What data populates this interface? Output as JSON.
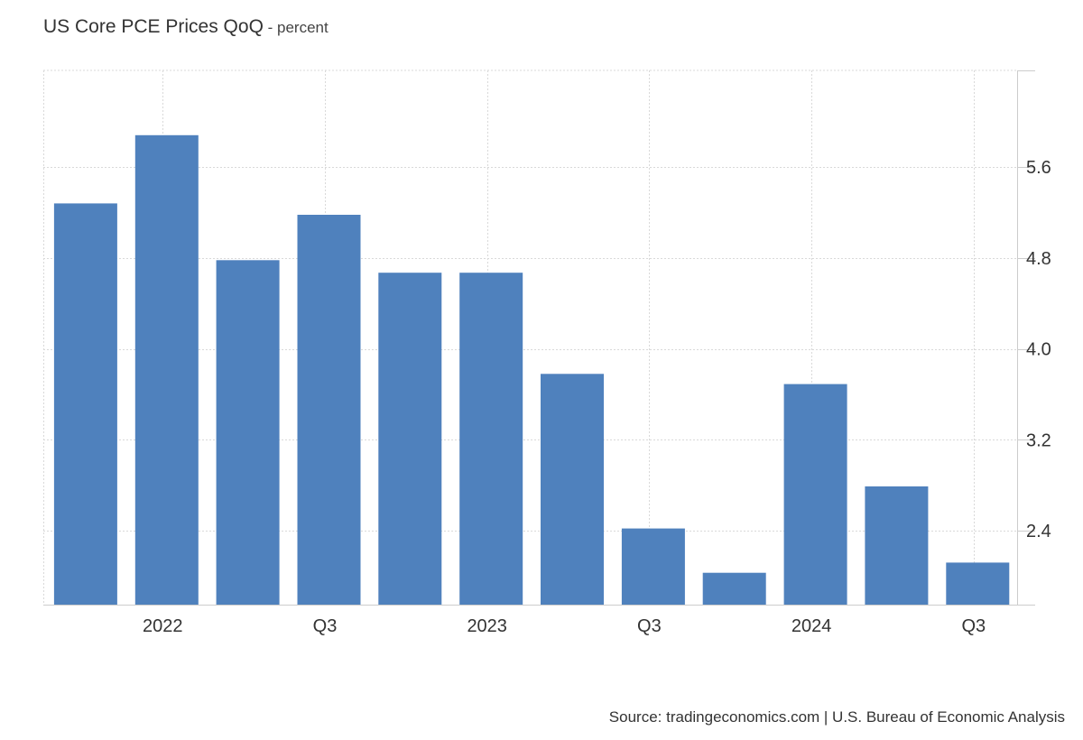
{
  "title": {
    "main": "US Core PCE Prices QoQ",
    "separator": " - ",
    "unit": "percent"
  },
  "source": "Source: tradingeconomics.com | U.S. Bureau of Economic Analysis",
  "colors": {
    "bar": "#4f81bd",
    "grid": "#d9d9d9",
    "axis": "#cccccc",
    "text": "#333333"
  },
  "chart_data": {
    "type": "bar",
    "series": [
      {
        "values": [
          5.28,
          5.88,
          4.78,
          5.18,
          4.67,
          4.67,
          3.78,
          2.42,
          2.03,
          3.69,
          2.79,
          2.12
        ]
      }
    ],
    "x_tick_labels": [
      "2022",
      "Q3",
      "2023",
      "Q3",
      "2024",
      "Q3"
    ],
    "y_ticks": [
      "2.4",
      "3.2",
      "4.0",
      "4.8",
      "5.6"
    ],
    "ylim": [
      1.75,
      6.45
    ],
    "y_axis_position": "right",
    "grid": true
  }
}
